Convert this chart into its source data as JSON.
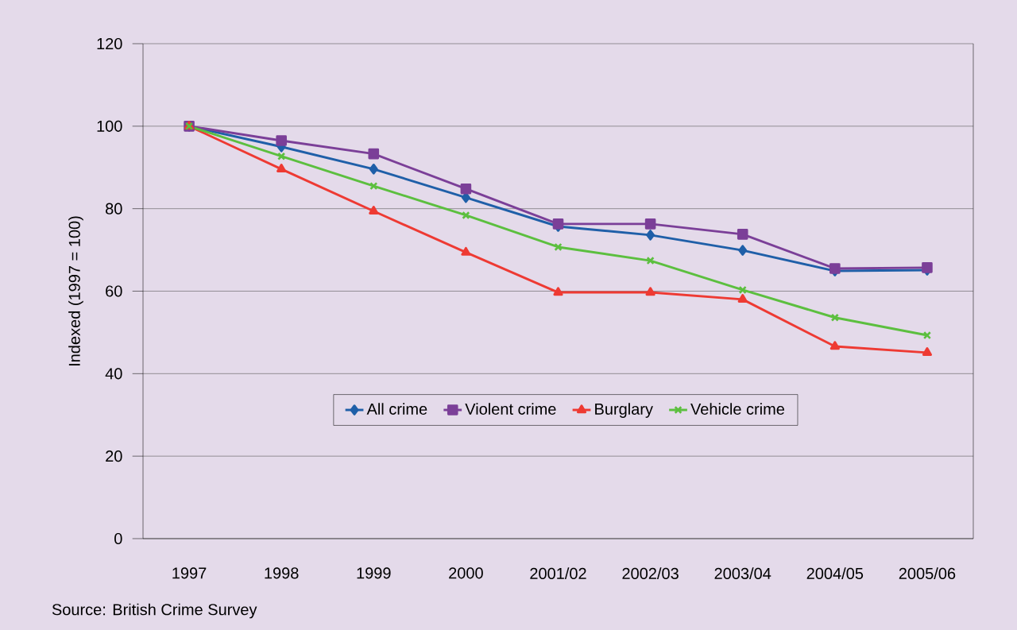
{
  "chart_data": {
    "type": "line",
    "ylabel": "Indexed (1997 = 100)",
    "categories": [
      "1997",
      "1998",
      "1999",
      "2000",
      "2001/02",
      "2002/03",
      "2003/04",
      "2004/05",
      "2005/06"
    ],
    "series": [
      {
        "name": "All crime",
        "color": "#1f5fa8",
        "marker": "diamond",
        "values": [
          100,
          95.0,
          89.6,
          82.7,
          75.7,
          73.6,
          69.9,
          64.9,
          65.1
        ]
      },
      {
        "name": "Violent crime",
        "color": "#7b3f98",
        "marker": "square",
        "values": [
          100,
          96.5,
          93.3,
          84.8,
          76.3,
          76.3,
          73.8,
          65.5,
          65.7
        ]
      },
      {
        "name": "Burglary",
        "color": "#ee3a33",
        "marker": "triangle",
        "values": [
          100,
          89.6,
          79.4,
          69.4,
          59.7,
          59.7,
          58.0,
          46.6,
          45.1
        ]
      },
      {
        "name": "Vehicle crime",
        "color": "#5cbf3f",
        "marker": "cross",
        "values": [
          100,
          92.7,
          85.5,
          78.4,
          70.7,
          67.4,
          60.3,
          53.6,
          49.3
        ]
      }
    ],
    "ylim": [
      0,
      120
    ],
    "yticks": [
      0,
      20,
      40,
      60,
      80,
      100,
      120
    ],
    "grid": "y",
    "legend": "bottom",
    "annotations": [
      "Source: British Crime Survey"
    ]
  }
}
